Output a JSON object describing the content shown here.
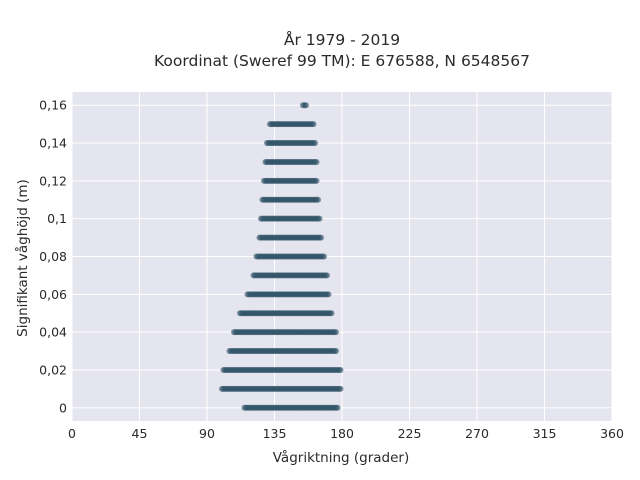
{
  "chart_data": {
    "type": "scatter",
    "title_line1": "År 1979 - 2019",
    "title_line2": "Koordinat (Sweref 99 TM): E 676588, N 6548567",
    "xlabel": "Vågriktning (grader)",
    "ylabel": "Signifikant våghöjd (m)",
    "xlim": [
      0,
      360
    ],
    "ylim": [
      -0.007,
      0.167
    ],
    "x_ticks": [
      0,
      45,
      90,
      135,
      180,
      225,
      270,
      315,
      360
    ],
    "x_tick_labels": [
      "0",
      "45",
      "90",
      "135",
      "180",
      "225",
      "270",
      "315",
      "360"
    ],
    "y_ticks": [
      0,
      0.02,
      0.04,
      0.06,
      0.08,
      0.1,
      0.12,
      0.14,
      0.16
    ],
    "y_tick_labels": [
      "0",
      "0,02",
      "0,04",
      "0,06",
      "0,08",
      "0,1",
      "0,12",
      "0,14",
      "0,16"
    ],
    "grid": true,
    "background": "#e5e5ef",
    "marker_color": "#2e5266",
    "bands": [
      {
        "y": 0.0,
        "x_min": 115,
        "x_max": 177
      },
      {
        "y": 0.01,
        "x_min": 100,
        "x_max": 179
      },
      {
        "y": 0.02,
        "x_min": 101,
        "x_max": 179
      },
      {
        "y": 0.03,
        "x_min": 105,
        "x_max": 176
      },
      {
        "y": 0.04,
        "x_min": 108,
        "x_max": 176
      },
      {
        "y": 0.05,
        "x_min": 112,
        "x_max": 173
      },
      {
        "y": 0.06,
        "x_min": 117,
        "x_max": 171
      },
      {
        "y": 0.07,
        "x_min": 121,
        "x_max": 170
      },
      {
        "y": 0.08,
        "x_min": 123,
        "x_max": 168
      },
      {
        "y": 0.09,
        "x_min": 125,
        "x_max": 166
      },
      {
        "y": 0.1,
        "x_min": 126,
        "x_max": 165
      },
      {
        "y": 0.11,
        "x_min": 127,
        "x_max": 164
      },
      {
        "y": 0.12,
        "x_min": 128,
        "x_max": 163
      },
      {
        "y": 0.13,
        "x_min": 129,
        "x_max": 163
      },
      {
        "y": 0.14,
        "x_min": 130,
        "x_max": 162
      },
      {
        "y": 0.15,
        "x_min": 132,
        "x_max": 161
      },
      {
        "y": 0.16,
        "x_min": 154,
        "x_max": 156
      }
    ]
  }
}
